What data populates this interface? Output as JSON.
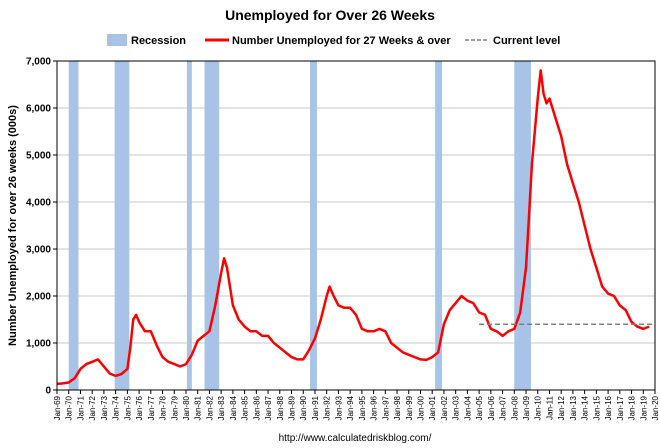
{
  "chart_data": {
    "type": "line",
    "title": "Unemployed for Over 26 Weeks",
    "ylabel": "Number Unemployed for over 26 weeks (000s)",
    "xlabel": "",
    "source": "http://www.calculatedriskblog.com/",
    "ylim": [
      0,
      7000
    ],
    "yticks": [
      0,
      1000,
      2000,
      3000,
      4000,
      5000,
      6000,
      7000
    ],
    "ytick_labels": [
      "0",
      "1,000",
      "2,000",
      "3,000",
      "4,000",
      "5,000",
      "6,000",
      "7,000"
    ],
    "xlim": [
      "1969-01",
      "2020-01"
    ],
    "xtick_labels": [
      "Jan-69",
      "Jan-70",
      "Jan-71",
      "Jan-72",
      "Jan-73",
      "Jan-74",
      "Jan-75",
      "Jan-76",
      "Jan-77",
      "Jan-78",
      "Jan-79",
      "Jan-80",
      "Jan-81",
      "Jan-82",
      "Jan-83",
      "Jan-84",
      "Jan-85",
      "Jan-86",
      "Jan-87",
      "Jan-88",
      "Jan-89",
      "Jan-90",
      "Jan-91",
      "Jan-92",
      "Jan-93",
      "Jan-94",
      "Jan-95",
      "Jan-96",
      "Jan-97",
      "Jan-98",
      "Jan-99",
      "Jan-00",
      "Jan-01",
      "Jan-02",
      "Jan-03",
      "Jan-04",
      "Jan-05",
      "Jan-06",
      "Jan-07",
      "Jan-08",
      "Jan-09",
      "Jan-10",
      "Jan-11",
      "Jan-12",
      "Jan-13",
      "Jan-14",
      "Jan-15",
      "Jan-16",
      "Jan-17",
      "Jan-18",
      "Jan-19",
      "Jan-20"
    ],
    "grid": true,
    "legend": {
      "placement": "top",
      "entries": [
        {
          "label": "Recession",
          "kind": "band",
          "color": "#a7c3e8"
        },
        {
          "label": "Number Unemployed for 27 Weeks & over",
          "kind": "line",
          "color": "#ff0000"
        },
        {
          "label": "Current level",
          "kind": "dashed",
          "color": "#808080"
        }
      ]
    },
    "recessions": [
      {
        "start": "1970-01",
        "end": "1970-11"
      },
      {
        "start": "1973-12",
        "end": "1975-03"
      },
      {
        "start": "1980-02",
        "end": "1980-07"
      },
      {
        "start": "1981-08",
        "end": "1982-11"
      },
      {
        "start": "1990-08",
        "end": "1991-03"
      },
      {
        "start": "2001-04",
        "end": "2001-11"
      },
      {
        "start": "2008-01",
        "end": "2009-06"
      }
    ],
    "series": [
      {
        "name": "Number Unemployed for 27 Weeks & over",
        "color": "#ff0000",
        "x": [
          "1969-01",
          "1969-07",
          "1970-01",
          "1970-07",
          "1971-01",
          "1971-07",
          "1972-01",
          "1972-07",
          "1973-01",
          "1973-07",
          "1974-01",
          "1974-07",
          "1975-01",
          "1975-04",
          "1975-07",
          "1975-10",
          "1976-01",
          "1976-07",
          "1977-01",
          "1977-07",
          "1978-01",
          "1978-07",
          "1979-01",
          "1979-07",
          "1980-01",
          "1980-07",
          "1981-01",
          "1981-07",
          "1982-01",
          "1982-07",
          "1983-01",
          "1983-04",
          "1983-07",
          "1984-01",
          "1984-07",
          "1985-01",
          "1985-07",
          "1986-01",
          "1986-07",
          "1987-01",
          "1987-07",
          "1988-01",
          "1988-07",
          "1989-01",
          "1989-07",
          "1990-01",
          "1990-07",
          "1991-01",
          "1991-07",
          "1992-01",
          "1992-04",
          "1992-07",
          "1993-01",
          "1993-07",
          "1994-01",
          "1994-07",
          "1995-01",
          "1995-07",
          "1996-01",
          "1996-07",
          "1997-01",
          "1997-07",
          "1998-01",
          "1998-07",
          "1999-01",
          "1999-07",
          "2000-01",
          "2000-07",
          "2001-01",
          "2001-07",
          "2002-01",
          "2002-07",
          "2003-01",
          "2003-07",
          "2004-01",
          "2004-07",
          "2005-01",
          "2005-07",
          "2006-01",
          "2006-07",
          "2007-01",
          "2007-07",
          "2008-01",
          "2008-07",
          "2009-01",
          "2009-04",
          "2009-07",
          "2009-10",
          "2010-01",
          "2010-04",
          "2010-07",
          "2010-10",
          "2011-01",
          "2011-07",
          "2012-01",
          "2012-07",
          "2013-01",
          "2013-07",
          "2014-01",
          "2014-07",
          "2015-01",
          "2015-07",
          "2016-01",
          "2016-07",
          "2017-01",
          "2017-07",
          "2018-01",
          "2018-07",
          "2019-01",
          "2019-07"
        ],
        "values": [
          130,
          140,
          160,
          250,
          450,
          550,
          600,
          650,
          500,
          350,
          300,
          340,
          450,
          900,
          1500,
          1600,
          1450,
          1250,
          1250,
          950,
          700,
          600,
          550,
          500,
          550,
          750,
          1050,
          1150,
          1250,
          1800,
          2500,
          2800,
          2600,
          1800,
          1500,
          1350,
          1250,
          1250,
          1150,
          1150,
          1000,
          900,
          800,
          700,
          650,
          650,
          850,
          1100,
          1500,
          2000,
          2200,
          2050,
          1800,
          1750,
          1750,
          1600,
          1300,
          1250,
          1250,
          1300,
          1250,
          1000,
          900,
          800,
          750,
          700,
          650,
          640,
          700,
          800,
          1400,
          1700,
          1850,
          2000,
          1900,
          1850,
          1650,
          1600,
          1300,
          1250,
          1150,
          1250,
          1300,
          1650,
          2600,
          3700,
          4800,
          5500,
          6200,
          6800,
          6300,
          6100,
          6200,
          5800,
          5400,
          4800,
          4400,
          4000,
          3500,
          3000,
          2600,
          2200,
          2050,
          2000,
          1800,
          1700,
          1450,
          1350,
          1300,
          1350
        ]
      }
    ],
    "current_level": {
      "label": "Current level",
      "value": 1400,
      "from": "2005-01",
      "to": "2019-12"
    }
  }
}
